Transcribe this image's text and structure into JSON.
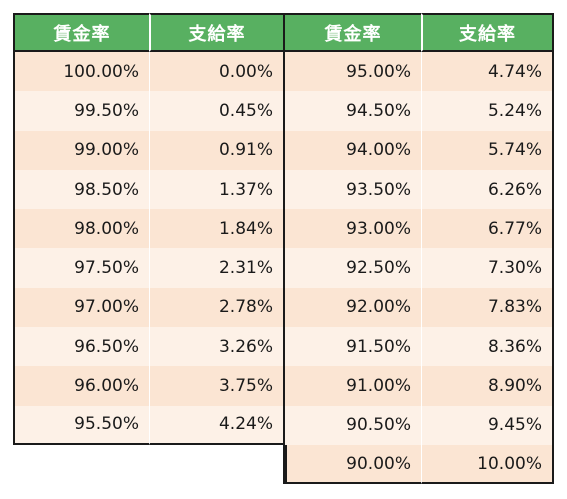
{
  "headers": [
    "賃金率",
    "支給率",
    "賃金率",
    "支給率"
  ],
  "rows": [
    {
      "l_wage": "100.00%",
      "l_rate": "0.00%",
      "r_wage": "95.00%",
      "r_rate": "4.74%"
    },
    {
      "l_wage": "99.50%",
      "l_rate": "0.45%",
      "r_wage": "94.50%",
      "r_rate": "5.24%"
    },
    {
      "l_wage": "99.00%",
      "l_rate": "0.91%",
      "r_wage": "94.00%",
      "r_rate": "5.74%"
    },
    {
      "l_wage": "98.50%",
      "l_rate": "1.37%",
      "r_wage": "93.50%",
      "r_rate": "6.26%"
    },
    {
      "l_wage": "98.00%",
      "l_rate": "1.84%",
      "r_wage": "93.00%",
      "r_rate": "6.77%"
    },
    {
      "l_wage": "97.50%",
      "l_rate": "2.31%",
      "r_wage": "92.50%",
      "r_rate": "7.30%"
    },
    {
      "l_wage": "97.00%",
      "l_rate": "2.78%",
      "r_wage": "92.00%",
      "r_rate": "7.83%"
    },
    {
      "l_wage": "96.50%",
      "l_rate": "3.26%",
      "r_wage": "91.50%",
      "r_rate": "8.36%"
    },
    {
      "l_wage": "96.00%",
      "l_rate": "3.75%",
      "r_wage": "91.00%",
      "r_rate": "8.90%"
    },
    {
      "l_wage": "95.50%",
      "l_rate": "4.24%",
      "r_wage": "90.50%",
      "r_rate": "9.45%"
    },
    {
      "l_wage": "",
      "l_rate": "",
      "r_wage": "90.00%",
      "r_rate": "10.00%"
    }
  ],
  "colors": {
    "header_bg": "#58b061",
    "row_odd": "#fbe5d3",
    "row_even": "#fdf1e7"
  }
}
